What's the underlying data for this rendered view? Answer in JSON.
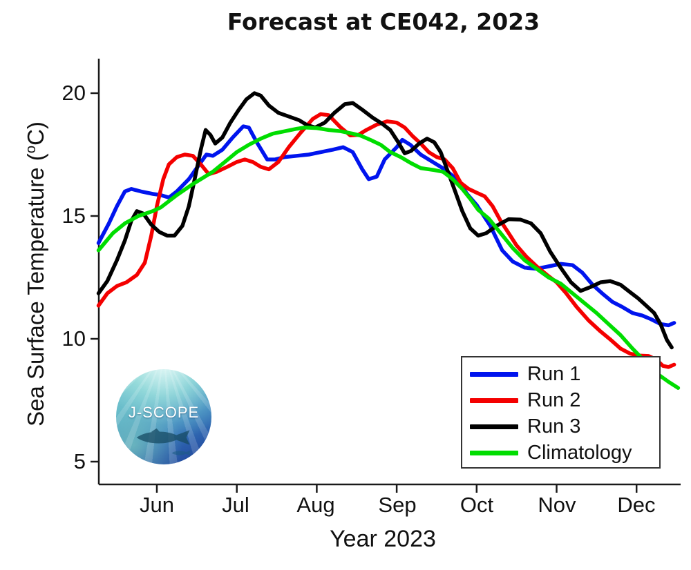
{
  "logo": {
    "text": "J-SCOPE"
  },
  "axis": {
    "ylabel_pre": "Sea Surface Temperature (",
    "ylabel_sup": "o",
    "ylabel_post": "C)"
  },
  "chart_data": {
    "type": "line",
    "title": "Forecast at CE042, 2023",
    "xlabel": "Year 2023",
    "ylabel": "Sea Surface Temperature (°C)",
    "x_unit": "month of 2023 (6.0 = Jun 1, 7.0 = Jul 1, ...)",
    "xlim": [
      5.27,
      12.55
    ],
    "ylim": [
      4.1,
      21.4
    ],
    "grid": false,
    "legend_position": "lower right",
    "x_ticks": [
      {
        "value": 6,
        "label": "Jun"
      },
      {
        "value": 7,
        "label": "Jul"
      },
      {
        "value": 8,
        "label": "Aug"
      },
      {
        "value": 9,
        "label": "Sep"
      },
      {
        "value": 10,
        "label": "Oct"
      },
      {
        "value": 11,
        "label": "Nov"
      },
      {
        "value": 12,
        "label": "Dec"
      }
    ],
    "y_ticks": [
      {
        "value": 20,
        "label": "20"
      },
      {
        "value": 15,
        "label": "15"
      },
      {
        "value": 10,
        "label": "10"
      },
      {
        "value": 5,
        "label": "5"
      }
    ],
    "series": [
      {
        "name": "Run 1",
        "color": "#0014ee",
        "points": [
          [
            5.27,
            13.9
          ],
          [
            5.4,
            14.7
          ],
          [
            5.5,
            15.4
          ],
          [
            5.6,
            16.0
          ],
          [
            5.68,
            16.1
          ],
          [
            5.8,
            16.0
          ],
          [
            5.95,
            15.9
          ],
          [
            6.05,
            15.85
          ],
          [
            6.15,
            15.75
          ],
          [
            6.25,
            16.0
          ],
          [
            6.4,
            16.5
          ],
          [
            6.52,
            17.05
          ],
          [
            6.62,
            17.5
          ],
          [
            6.7,
            17.45
          ],
          [
            6.82,
            17.7
          ],
          [
            6.95,
            18.2
          ],
          [
            7.08,
            18.65
          ],
          [
            7.15,
            18.6
          ],
          [
            7.25,
            18.0
          ],
          [
            7.38,
            17.3
          ],
          [
            7.48,
            17.3
          ],
          [
            7.6,
            17.4
          ],
          [
            7.75,
            17.45
          ],
          [
            7.9,
            17.5
          ],
          [
            8.05,
            17.6
          ],
          [
            8.2,
            17.7
          ],
          [
            8.33,
            17.8
          ],
          [
            8.45,
            17.6
          ],
          [
            8.57,
            16.9
          ],
          [
            8.65,
            16.5
          ],
          [
            8.75,
            16.6
          ],
          [
            8.85,
            17.3
          ],
          [
            9.0,
            17.8
          ],
          [
            9.07,
            18.1
          ],
          [
            9.17,
            17.9
          ],
          [
            9.3,
            17.5
          ],
          [
            9.45,
            17.2
          ],
          [
            9.6,
            16.9
          ],
          [
            9.75,
            16.5
          ],
          [
            9.88,
            15.9
          ],
          [
            10.0,
            15.45
          ],
          [
            10.17,
            14.6
          ],
          [
            10.32,
            13.6
          ],
          [
            10.45,
            13.15
          ],
          [
            10.6,
            12.9
          ],
          [
            10.75,
            12.85
          ],
          [
            10.9,
            12.95
          ],
          [
            11.05,
            13.05
          ],
          [
            11.2,
            13.0
          ],
          [
            11.32,
            12.7
          ],
          [
            11.45,
            12.2
          ],
          [
            11.57,
            11.85
          ],
          [
            11.7,
            11.5
          ],
          [
            11.82,
            11.3
          ],
          [
            11.95,
            11.05
          ],
          [
            12.07,
            10.95
          ],
          [
            12.18,
            10.8
          ],
          [
            12.3,
            10.6
          ],
          [
            12.4,
            10.55
          ],
          [
            12.47,
            10.65
          ]
        ]
      },
      {
        "name": "Run 2",
        "color": "#f40000",
        "points": [
          [
            5.27,
            11.35
          ],
          [
            5.38,
            11.85
          ],
          [
            5.5,
            12.15
          ],
          [
            5.62,
            12.3
          ],
          [
            5.75,
            12.6
          ],
          [
            5.85,
            13.1
          ],
          [
            5.93,
            14.2
          ],
          [
            6.0,
            15.4
          ],
          [
            6.08,
            16.5
          ],
          [
            6.15,
            17.1
          ],
          [
            6.25,
            17.4
          ],
          [
            6.35,
            17.5
          ],
          [
            6.45,
            17.45
          ],
          [
            6.55,
            17.1
          ],
          [
            6.65,
            16.7
          ],
          [
            6.75,
            16.8
          ],
          [
            6.88,
            17.0
          ],
          [
            7.0,
            17.2
          ],
          [
            7.1,
            17.3
          ],
          [
            7.2,
            17.2
          ],
          [
            7.3,
            17.0
          ],
          [
            7.4,
            16.9
          ],
          [
            7.52,
            17.2
          ],
          [
            7.65,
            17.8
          ],
          [
            7.8,
            18.4
          ],
          [
            7.95,
            18.95
          ],
          [
            8.05,
            19.15
          ],
          [
            8.15,
            19.1
          ],
          [
            8.3,
            18.6
          ],
          [
            8.42,
            18.28
          ],
          [
            8.52,
            18.3
          ],
          [
            8.62,
            18.5
          ],
          [
            8.75,
            18.72
          ],
          [
            8.88,
            18.85
          ],
          [
            9.0,
            18.8
          ],
          [
            9.1,
            18.6
          ],
          [
            9.2,
            18.25
          ],
          [
            9.3,
            17.95
          ],
          [
            9.4,
            17.6
          ],
          [
            9.5,
            17.4
          ],
          [
            9.6,
            17.3
          ],
          [
            9.7,
            16.95
          ],
          [
            9.8,
            16.35
          ],
          [
            9.9,
            16.1
          ],
          [
            10.0,
            15.95
          ],
          [
            10.1,
            15.8
          ],
          [
            10.2,
            15.4
          ],
          [
            10.3,
            14.8
          ],
          [
            10.4,
            14.3
          ],
          [
            10.5,
            13.8
          ],
          [
            10.62,
            13.35
          ],
          [
            10.75,
            12.95
          ],
          [
            10.88,
            12.6
          ],
          [
            11.0,
            12.3
          ],
          [
            11.12,
            11.85
          ],
          [
            11.25,
            11.3
          ],
          [
            11.4,
            10.75
          ],
          [
            11.55,
            10.3
          ],
          [
            11.68,
            9.95
          ],
          [
            11.8,
            9.6
          ],
          [
            11.92,
            9.4
          ],
          [
            12.03,
            9.32
          ],
          [
            12.15,
            9.3
          ],
          [
            12.25,
            9.15
          ],
          [
            12.33,
            8.9
          ],
          [
            12.4,
            8.85
          ],
          [
            12.47,
            8.95
          ]
        ]
      },
      {
        "name": "Run 3",
        "color": "#000000",
        "points": [
          [
            5.27,
            11.85
          ],
          [
            5.38,
            12.35
          ],
          [
            5.5,
            13.2
          ],
          [
            5.6,
            14.0
          ],
          [
            5.68,
            14.8
          ],
          [
            5.75,
            15.2
          ],
          [
            5.83,
            15.1
          ],
          [
            5.93,
            14.65
          ],
          [
            6.03,
            14.35
          ],
          [
            6.13,
            14.2
          ],
          [
            6.22,
            14.2
          ],
          [
            6.32,
            14.6
          ],
          [
            6.4,
            15.4
          ],
          [
            6.48,
            16.6
          ],
          [
            6.55,
            17.7
          ],
          [
            6.61,
            18.5
          ],
          [
            6.67,
            18.3
          ],
          [
            6.73,
            17.95
          ],
          [
            6.82,
            18.2
          ],
          [
            6.92,
            18.8
          ],
          [
            7.02,
            19.3
          ],
          [
            7.12,
            19.75
          ],
          [
            7.22,
            20.0
          ],
          [
            7.3,
            19.9
          ],
          [
            7.4,
            19.5
          ],
          [
            7.52,
            19.2
          ],
          [
            7.65,
            19.05
          ],
          [
            7.78,
            18.9
          ],
          [
            7.88,
            18.7
          ],
          [
            7.98,
            18.6
          ],
          [
            8.1,
            18.8
          ],
          [
            8.22,
            19.2
          ],
          [
            8.35,
            19.55
          ],
          [
            8.45,
            19.6
          ],
          [
            8.58,
            19.3
          ],
          [
            8.7,
            19.0
          ],
          [
            8.82,
            18.75
          ],
          [
            8.92,
            18.5
          ],
          [
            9.02,
            18.0
          ],
          [
            9.1,
            17.55
          ],
          [
            9.18,
            17.65
          ],
          [
            9.28,
            17.95
          ],
          [
            9.38,
            18.15
          ],
          [
            9.47,
            18.0
          ],
          [
            9.55,
            17.6
          ],
          [
            9.63,
            16.9
          ],
          [
            9.72,
            16.1
          ],
          [
            9.82,
            15.2
          ],
          [
            9.92,
            14.5
          ],
          [
            10.02,
            14.2
          ],
          [
            10.12,
            14.3
          ],
          [
            10.25,
            14.6
          ],
          [
            10.4,
            14.87
          ],
          [
            10.55,
            14.85
          ],
          [
            10.68,
            14.7
          ],
          [
            10.8,
            14.3
          ],
          [
            10.92,
            13.55
          ],
          [
            11.05,
            12.9
          ],
          [
            11.18,
            12.3
          ],
          [
            11.3,
            11.95
          ],
          [
            11.42,
            12.1
          ],
          [
            11.55,
            12.3
          ],
          [
            11.67,
            12.35
          ],
          [
            11.8,
            12.2
          ],
          [
            11.92,
            11.9
          ],
          [
            12.02,
            11.65
          ],
          [
            12.12,
            11.35
          ],
          [
            12.22,
            11.05
          ],
          [
            12.3,
            10.6
          ],
          [
            12.38,
            9.95
          ],
          [
            12.44,
            9.65
          ]
        ]
      },
      {
        "name": "Climatology",
        "color": "#00dd00",
        "points": [
          [
            5.27,
            13.6
          ],
          [
            5.45,
            14.3
          ],
          [
            5.6,
            14.7
          ],
          [
            5.77,
            15.0
          ],
          [
            5.95,
            15.2
          ],
          [
            6.05,
            15.35
          ],
          [
            6.25,
            15.85
          ],
          [
            6.45,
            16.3
          ],
          [
            6.55,
            16.5
          ],
          [
            6.7,
            16.8
          ],
          [
            6.85,
            17.2
          ],
          [
            7.0,
            17.6
          ],
          [
            7.15,
            17.9
          ],
          [
            7.3,
            18.15
          ],
          [
            7.45,
            18.35
          ],
          [
            7.6,
            18.45
          ],
          [
            7.75,
            18.55
          ],
          [
            7.85,
            18.6
          ],
          [
            8.0,
            18.58
          ],
          [
            8.15,
            18.5
          ],
          [
            8.3,
            18.45
          ],
          [
            8.45,
            18.35
          ],
          [
            8.55,
            18.27
          ],
          [
            8.67,
            18.1
          ],
          [
            8.8,
            17.9
          ],
          [
            8.92,
            17.6
          ],
          [
            9.05,
            17.4
          ],
          [
            9.18,
            17.15
          ],
          [
            9.3,
            16.95
          ],
          [
            9.45,
            16.88
          ],
          [
            9.58,
            16.8
          ],
          [
            9.7,
            16.5
          ],
          [
            9.82,
            16.1
          ],
          [
            9.92,
            15.7
          ],
          [
            10.02,
            15.25
          ],
          [
            10.15,
            14.9
          ],
          [
            10.3,
            14.3
          ],
          [
            10.45,
            13.7
          ],
          [
            10.6,
            13.2
          ],
          [
            10.75,
            12.85
          ],
          [
            10.9,
            12.5
          ],
          [
            11.05,
            12.25
          ],
          [
            11.2,
            11.85
          ],
          [
            11.35,
            11.45
          ],
          [
            11.5,
            11.05
          ],
          [
            11.65,
            10.6
          ],
          [
            11.8,
            10.15
          ],
          [
            11.95,
            9.6
          ],
          [
            12.1,
            9.1
          ],
          [
            12.25,
            8.6
          ],
          [
            12.4,
            8.25
          ],
          [
            12.52,
            8.0
          ]
        ]
      }
    ]
  }
}
